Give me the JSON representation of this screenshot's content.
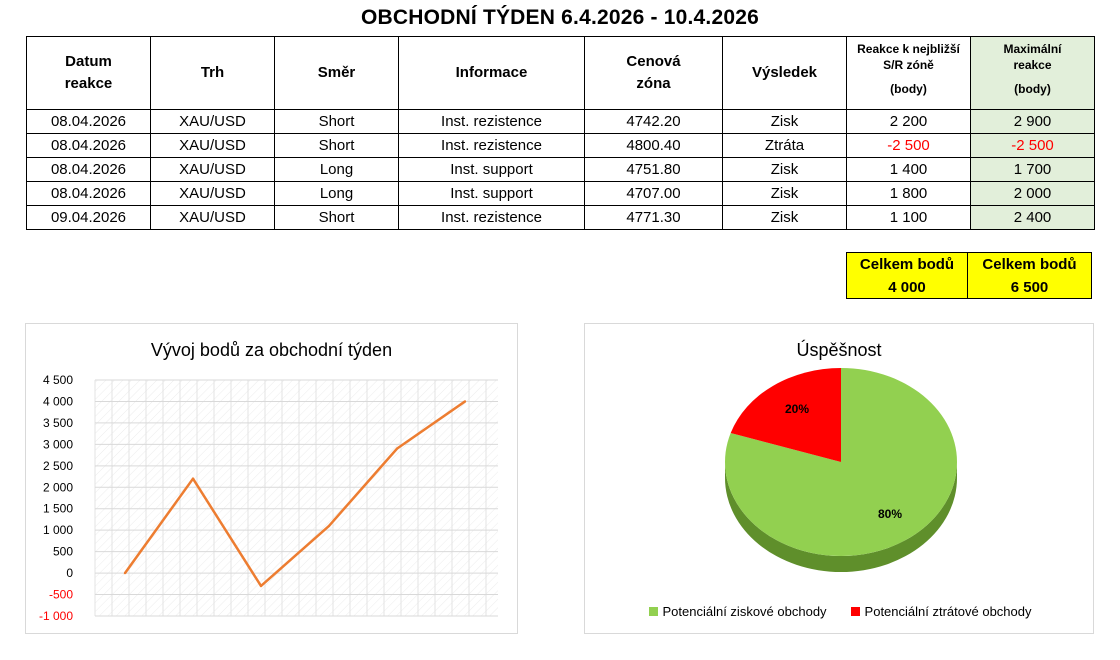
{
  "title": "OBCHODNÍ TÝDEN 6.4.2026 - 10.4.2026",
  "table": {
    "headers": {
      "date_l1": "Datum",
      "date_l2": "reakce",
      "market": "Trh",
      "direction": "Směr",
      "info": "Informace",
      "zone_l1": "Cenová",
      "zone_l2": "zóna",
      "result": "Výsledek",
      "reaction_l1": "Reakce k nejbližší",
      "reaction_l2": "S/R zóně",
      "reaction_l3": "(body)",
      "max_l1": "Maximální",
      "max_l2": "reakce",
      "max_l3": "(body)"
    },
    "rows": [
      {
        "date": "08.04.2026",
        "market": "XAU/USD",
        "direction": "Short",
        "info": "Inst. rezistence",
        "zone": "4742.20",
        "result": "Zisk",
        "reaction": "2 200",
        "max": "2 900"
      },
      {
        "date": "08.04.2026",
        "market": "XAU/USD",
        "direction": "Short",
        "info": "Inst. rezistence",
        "zone": "4800.40",
        "result": "Ztráta",
        "reaction": "-2 500",
        "max": "-2 500"
      },
      {
        "date": "08.04.2026",
        "market": "XAU/USD",
        "direction": "Long",
        "info": "Inst. support",
        "zone": "4751.80",
        "result": "Zisk",
        "reaction": "1 400",
        "max": "1 700"
      },
      {
        "date": "08.04.2026",
        "market": "XAU/USD",
        "direction": "Long",
        "info": "Inst. support",
        "zone": "4707.00",
        "result": "Zisk",
        "reaction": "1 800",
        "max": "2 000"
      },
      {
        "date": "09.04.2026",
        "market": "XAU/USD",
        "direction": "Short",
        "info": "Inst. rezistence",
        "zone": "4771.30",
        "result": "Zisk",
        "reaction": "1 100",
        "max": "2 400"
      }
    ]
  },
  "totals": [
    {
      "label": "Celkem bodů",
      "value": "4 000"
    },
    {
      "label": "Celkem bodů",
      "value": "6 500"
    }
  ],
  "colors": {
    "negative": "#ff0000",
    "highlight": "#ffff00",
    "shade": "#e2efda",
    "line": "#ed7d31",
    "pie_win": "#92d050",
    "pie_loss": "#ff0000"
  },
  "chart_data": [
    {
      "type": "line",
      "title": "Vývoj bodů za obchodní týden",
      "xlabel": "",
      "ylabel": "",
      "x": [
        1,
        2,
        3,
        4,
        5,
        6
      ],
      "series": [
        {
          "values": [
            0,
            2200,
            -300,
            1100,
            2900,
            4000
          ]
        }
      ],
      "ylim": [
        -1000,
        4500
      ],
      "yticks": [
        -1000,
        -500,
        0,
        500,
        1000,
        1500,
        2000,
        2500,
        3000,
        3500,
        4000,
        4500
      ],
      "ytick_labels": [
        "-1 000",
        "-500",
        "0",
        "500",
        "1 000",
        "1 500",
        "2 000",
        "2 500",
        "3 000",
        "3 500",
        "4 000",
        "4 500"
      ],
      "grid": true,
      "legend": "none"
    },
    {
      "type": "pie",
      "title": "Úspěšnost",
      "labels": [
        "Potenciální ziskové obchody",
        "Potenciální ztrátové obchody"
      ],
      "values": [
        80,
        20
      ],
      "value_labels": [
        "80%",
        "20%"
      ],
      "legend": "bottom"
    }
  ]
}
